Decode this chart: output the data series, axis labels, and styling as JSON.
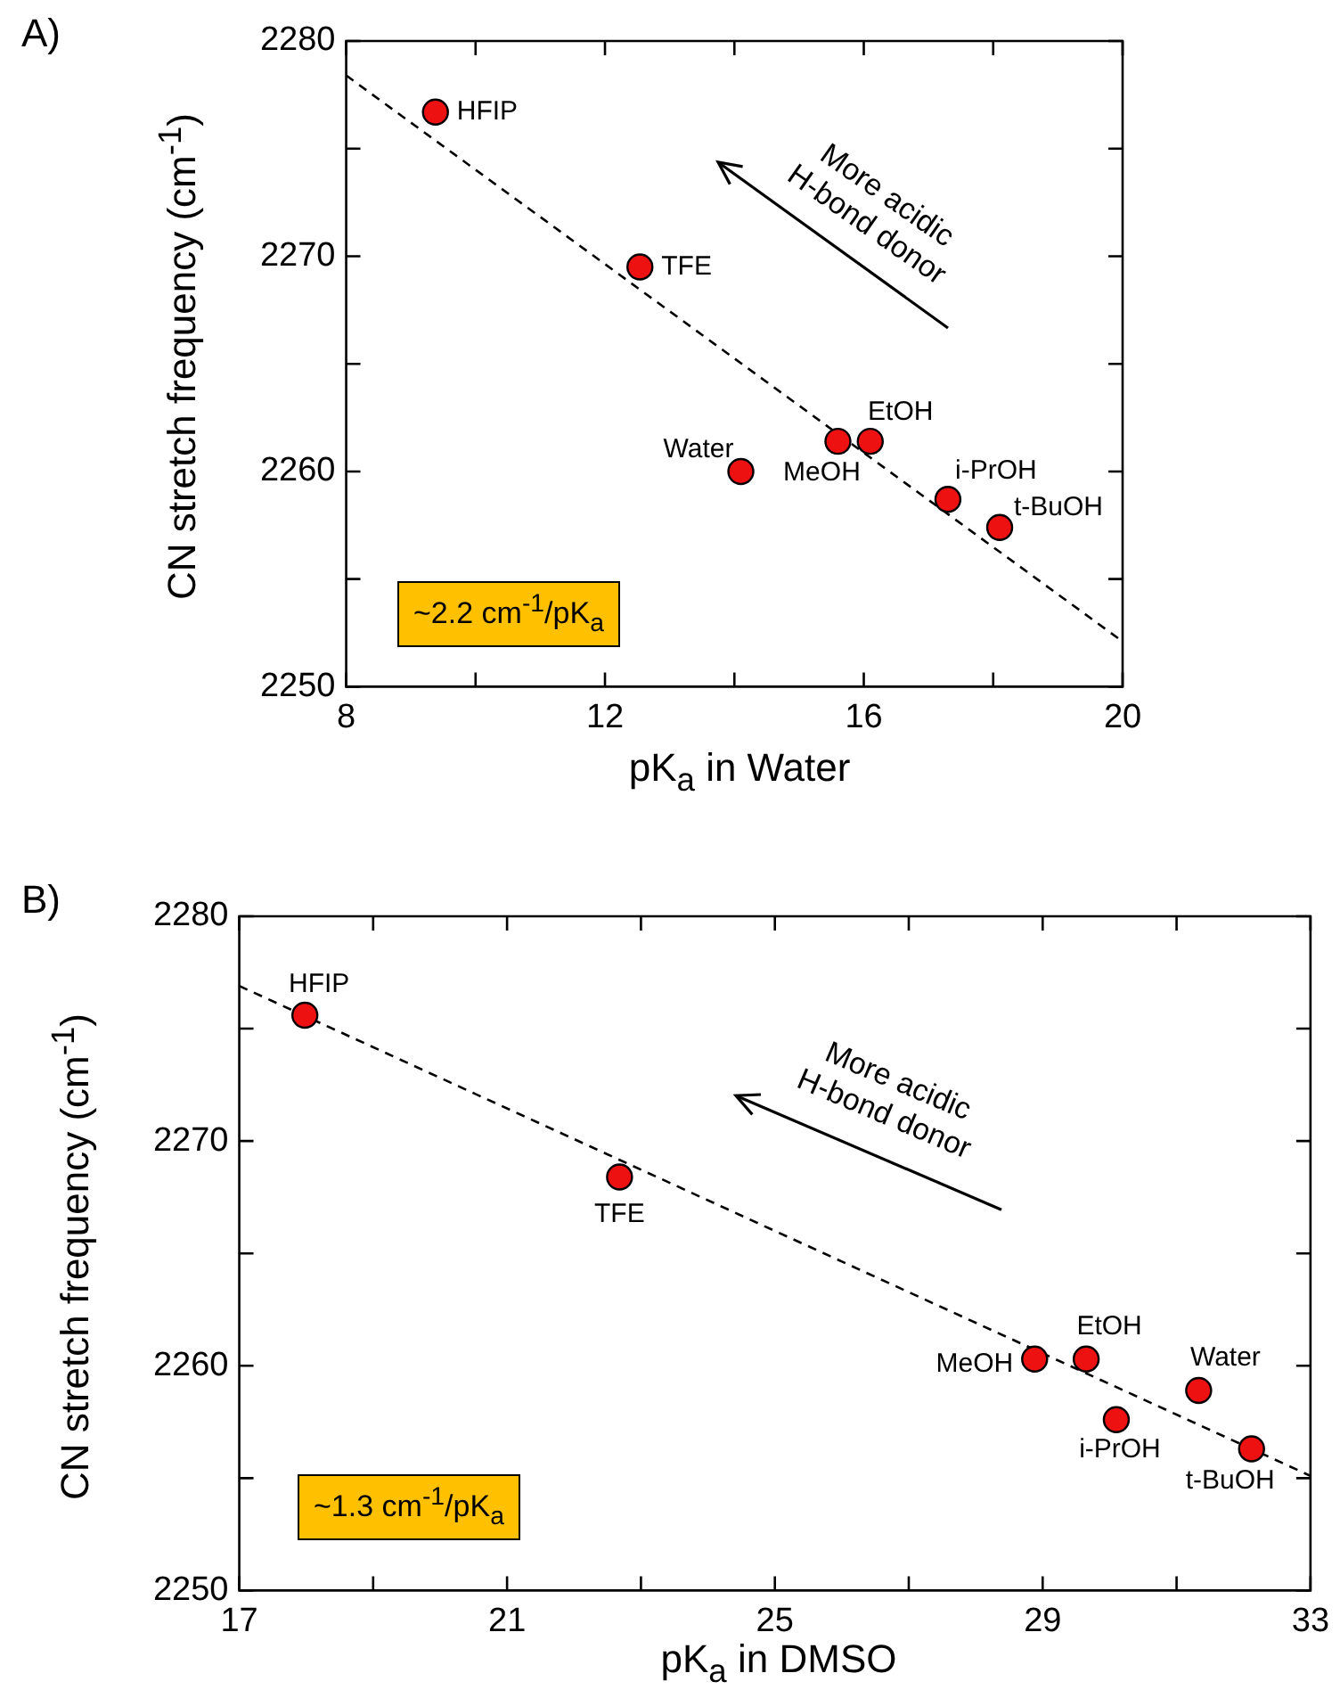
{
  "chart_data": [
    {
      "type": "scatter",
      "title": "A)",
      "xlabel": "pK$_{a}$ in Water",
      "ylabel": "CN stretch frequency (cm$^{-1}$)",
      "marker": "circle",
      "xlim": [
        8,
        20
      ],
      "xticks": [
        8,
        {
          "value": 10,
          "label": null
        },
        12,
        {
          "value": 14,
          "label": null
        },
        16,
        {
          "value": 18,
          "label": null
        },
        20
      ],
      "ylim": [
        2250,
        2280
      ],
      "yticks": [
        2250,
        {
          "value": 2255,
          "label": null
        },
        2260,
        {
          "value": 2265,
          "label": null
        },
        2270,
        {
          "value": 2275,
          "label": null
        },
        2280
      ],
      "series": [
        {
          "type": "scatter",
          "color": "#ee1111",
          "x": [
            9.38,
            12.54,
            14.1,
            15.6,
            16.1,
            17.3,
            18.1
          ],
          "values": [
            2276.7,
            2269.5,
            2260.0,
            2261.4,
            2261.4,
            2258.7,
            2257.4
          ]
        },
        {
          "type": "line",
          "color": "#000000",
          "line_style": "dashed",
          "marker": "none",
          "x": [
            8,
            20
          ],
          "values": [
            2278.4,
            2252.1
          ]
        }
      ],
      "annotations": [
        {
          "text": "HFIP",
          "x": 9.38,
          "y": 2276.7
        },
        {
          "text": "TFE",
          "x": 12.54,
          "y": 2269.5
        },
        {
          "text": "Water",
          "x": 14.1,
          "y": 2260.0
        },
        {
          "text": "MeOH",
          "x": 15.6,
          "y": 2261.4
        },
        {
          "text": "EtOH",
          "x": 16.1,
          "y": 2261.4
        },
        {
          "text": "i-PrOH",
          "x": 17.3,
          "y": 2258.7
        },
        {
          "text": "t-BuOH",
          "x": 18.1,
          "y": 2257.4
        },
        "More acidic H-bond donor",
        "~2.2 cm$^{-1}$/pK$_{a}$"
      ]
    },
    {
      "type": "scatter",
      "title": "B)",
      "xlabel": "pK$_{a}$ in DMSO",
      "ylabel": "CN stretch frequency (cm$^{-1}$)",
      "marker": "circle",
      "xlim": [
        17,
        33
      ],
      "xticks": [
        17,
        {
          "value": 19,
          "label": null
        },
        21,
        {
          "value": 23,
          "label": null
        },
        25,
        {
          "value": 27,
          "label": null
        },
        29,
        {
          "value": 31,
          "label": null
        },
        33
      ],
      "ylim": [
        2250,
        2280
      ],
      "yticks": [
        2250,
        {
          "value": 2255,
          "label": null
        },
        2260,
        {
          "value": 2265,
          "label": null
        },
        2270,
        {
          "value": 2275,
          "label": null
        },
        2280
      ],
      "series": [
        {
          "type": "scatter",
          "color": "#ee1111",
          "x": [
            17.98,
            22.68,
            28.88,
            29.65,
            31.33,
            30.1,
            32.12
          ],
          "values": [
            2275.6,
            2268.4,
            2260.3,
            2260.3,
            2258.9,
            2257.6,
            2256.3
          ]
        },
        {
          "type": "line",
          "color": "#000000",
          "line_style": "dashed",
          "marker": "none",
          "x": [
            17,
            33
          ],
          "values": [
            2276.9,
            2255.1
          ]
        }
      ],
      "annotations": [
        {
          "text": "HFIP",
          "x": 17.98,
          "y": 2275.6
        },
        {
          "text": "TFE",
          "x": 22.68,
          "y": 2268.4
        },
        {
          "text": "MeOH",
          "x": 28.88,
          "y": 2260.3
        },
        {
          "text": "EtOH",
          "x": 29.65,
          "y": 2260.3
        },
        {
          "text": "Water",
          "x": 31.33,
          "y": 2258.9
        },
        {
          "text": "i-PrOH",
          "x": 30.1,
          "y": 2257.6
        },
        {
          "text": "t-BuOH",
          "x": 32.12,
          "y": 2256.3
        },
        "More acidic H-bond donor",
        "~1.3 cm$^{-1}$/pK$_{a}$"
      ]
    }
  ]
}
